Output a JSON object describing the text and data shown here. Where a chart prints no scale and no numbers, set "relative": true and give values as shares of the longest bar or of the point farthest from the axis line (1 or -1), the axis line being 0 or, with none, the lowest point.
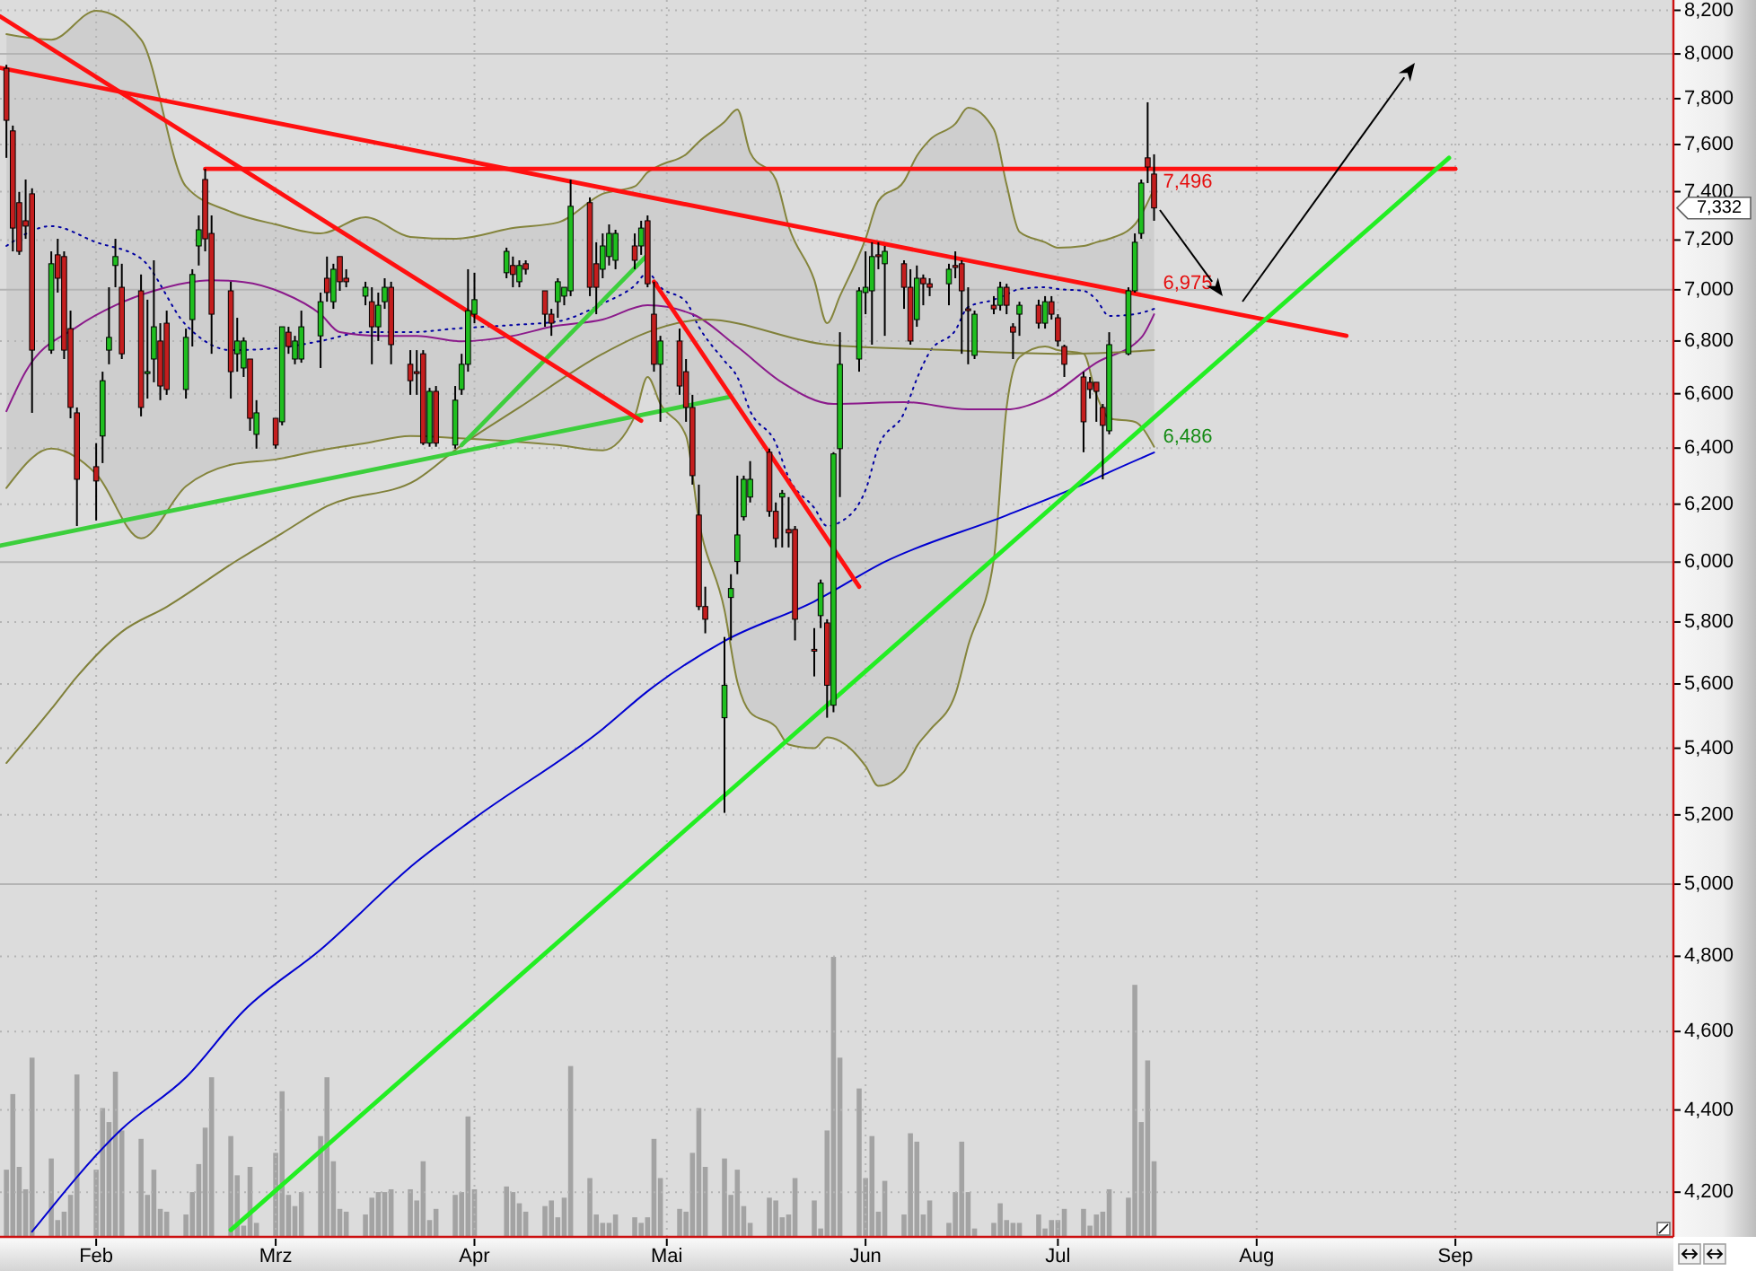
{
  "chart_data": [
    {
      "type": "candlestick",
      "log": true,
      "grid": true,
      "xlim": [
        "--01-17",
        "--10-05"
      ],
      "xticks": [
        {
          "value": "--02-01",
          "label": "Feb"
        },
        {
          "value": "--03-01",
          "label": "Mrz"
        },
        {
          "value": "--04-01",
          "label": "Apr"
        },
        {
          "value": "--05-01",
          "label": "Mai"
        },
        {
          "value": "--06-01",
          "label": "Jun"
        },
        {
          "value": "--07-01",
          "label": "Jul"
        },
        {
          "value": "--08-01",
          "label": "Aug"
        },
        {
          "value": "--09-01",
          "label": "Sep"
        }
      ],
      "ylim": [
        4095,
        8248
      ],
      "yticks": [
        {
          "value": 8200,
          "label": "8,200"
        },
        {
          "value": 8000,
          "label": "8,000"
        },
        {
          "value": 7800,
          "label": "7,800"
        },
        {
          "value": 7600,
          "label": "7,600"
        },
        {
          "value": 7400,
          "label": "7,400"
        },
        {
          "value": 7200,
          "label": "7,200"
        },
        {
          "value": 7000,
          "label": "7,000"
        },
        {
          "value": 6800,
          "label": "6,800"
        },
        {
          "value": 6600,
          "label": "6,600"
        },
        {
          "value": 6400,
          "label": "6,400"
        },
        {
          "value": 6200,
          "label": "6,200"
        },
        {
          "value": 6000,
          "label": "6,000"
        },
        {
          "value": 5800,
          "label": "5,800"
        },
        {
          "value": 5600,
          "label": "5,600"
        },
        {
          "value": 5400,
          "label": "5,400"
        },
        {
          "value": 5200,
          "label": "5,200"
        },
        {
          "value": 5000,
          "label": "5,000"
        },
        {
          "value": 4800,
          "label": "4,800"
        },
        {
          "value": 4600,
          "label": "4,600"
        },
        {
          "value": 4400,
          "label": "4,400"
        },
        {
          "value": 4200,
          "label": "4,200"
        }
      ],
      "x": [
        "--01-18",
        "--01-19",
        "--01-20",
        "--01-21",
        "--01-22",
        "--01-25",
        "--01-26",
        "--01-27",
        "--01-28",
        "--01-29",
        "--02-01",
        "--02-02",
        "--02-03",
        "--02-04",
        "--02-05",
        "--02-08",
        "--02-09",
        "--02-10",
        "--02-11",
        "--02-12",
        "--02-15",
        "--02-16",
        "--02-17",
        "--02-18",
        "--02-19",
        "--02-22",
        "--02-23",
        "--02-24",
        "--02-25",
        "--02-26",
        "--03-01",
        "--03-02",
        "--03-03",
        "--03-04",
        "--03-05",
        "--03-08",
        "--03-09",
        "--03-10",
        "--03-11",
        "--03-12",
        "--03-15",
        "--03-16",
        "--03-17",
        "--03-18",
        "--03-19",
        "--03-22",
        "--03-23",
        "--03-24",
        "--03-25",
        "--03-26",
        "--03-29",
        "--03-30",
        "--03-31",
        "--04-01",
        "--04-06",
        "--04-07",
        "--04-08",
        "--04-09",
        "--04-12",
        "--04-13",
        "--04-14",
        "--04-15",
        "--04-16",
        "--04-19",
        "--04-20",
        "--04-21",
        "--04-22",
        "--04-23",
        "--04-26",
        "--04-27",
        "--04-28",
        "--04-29",
        "--04-30",
        "--05-03",
        "--05-04",
        "--05-05",
        "--05-06",
        "--05-07",
        "--05-10",
        "--05-11",
        "--05-12",
        "--05-13",
        "--05-14",
        "--05-17",
        "--05-18",
        "--05-19",
        "--05-20",
        "--05-21",
        "--05-24",
        "--05-25",
        "--05-26",
        "--05-27",
        "--05-28",
        "--05-31",
        "--06-01",
        "--06-02",
        "--06-03",
        "--06-04",
        "--06-07",
        "--06-08",
        "--06-09",
        "--06-10",
        "--06-11",
        "--06-14",
        "--06-15",
        "--06-16",
        "--06-17",
        "--06-18",
        "--06-21",
        "--06-22",
        "--06-23",
        "--06-24",
        "--06-25",
        "--06-28",
        "--06-29",
        "--06-30",
        "--07-01",
        "--07-02",
        "--07-05",
        "--07-06",
        "--07-07",
        "--07-08",
        "--07-09",
        "--07-12",
        "--07-13",
        "--07-14",
        "--07-15",
        "--07-16"
      ],
      "ohlc": [
        [
          7935,
          7951,
          7543,
          7705
        ],
        [
          7659,
          7682,
          7154,
          7249
        ],
        [
          7354,
          7399,
          7140,
          7154
        ],
        [
          7279,
          7451,
          7205,
          7257
        ],
        [
          7391,
          7414,
          6529,
          6765
        ],
        [
          6765,
          7154,
          6751,
          7104
        ],
        [
          7140,
          7205,
          6989,
          7046
        ],
        [
          7133,
          7154,
          6731,
          6765
        ],
        [
          6848,
          6918,
          6509,
          6549
        ],
        [
          6529,
          6549,
          6124,
          6288
        ],
        [
          6333,
          6418,
          6143,
          6282
        ],
        [
          6444,
          6683,
          6346,
          6649
        ],
        [
          6765,
          7010,
          6711,
          6814
        ],
        [
          7097,
          7205,
          7010,
          7133
        ],
        [
          7010,
          7104,
          6731,
          6751
        ],
        [
          6996,
          7061,
          6516,
          6549
        ],
        [
          6676,
          6961,
          6582,
          6683
        ],
        [
          6731,
          7118,
          6643,
          6855
        ],
        [
          6800,
          6869,
          6576,
          6629
        ],
        [
          6869,
          6918,
          6596,
          6616
        ],
        [
          6616,
          6848,
          6582,
          6814
        ],
        [
          6883,
          7082,
          6779,
          7061
        ],
        [
          7176,
          7301,
          7097,
          7242
        ],
        [
          7451,
          7496,
          7154,
          7205
        ],
        [
          7227,
          7301,
          6751,
          6904
        ],
        [
          6996,
          7032,
          6582,
          6683
        ],
        [
          6751,
          6890,
          6683,
          6800
        ],
        [
          6697,
          6814,
          6663,
          6800
        ],
        [
          6731,
          6731,
          6463,
          6509
        ],
        [
          6450,
          6576,
          6398,
          6529
        ],
        [
          6509,
          6509,
          6398,
          6411
        ],
        [
          6496,
          6855,
          6483,
          6855
        ],
        [
          6834,
          6855,
          6751,
          6779
        ],
        [
          6731,
          6820,
          6711,
          6800
        ],
        [
          6731,
          6918,
          6717,
          6855
        ],
        [
          6820,
          6989,
          6697,
          6953
        ],
        [
          7046,
          7133,
          6953,
          6989
        ],
        [
          6953,
          7104,
          6925,
          7082
        ],
        [
          7133,
          7133,
          6996,
          7032
        ],
        [
          7046,
          7082,
          7010,
          7032
        ],
        [
          6975,
          7032,
          6939,
          7010
        ],
        [
          6953,
          7010,
          6711,
          6855
        ],
        [
          6855,
          6989,
          6800,
          6939
        ],
        [
          6953,
          7046,
          6925,
          7010
        ],
        [
          7010,
          7032,
          6711,
          6786
        ],
        [
          6711,
          6765,
          6596,
          6649
        ],
        [
          6683,
          6765,
          6596,
          6676
        ],
        [
          6751,
          6765,
          6411,
          6418
        ],
        [
          6418,
          6622,
          6405,
          6609
        ],
        [
          6609,
          6629,
          6405,
          6418
        ],
        [
          6411,
          6629,
          6398,
          6576
        ],
        [
          6616,
          6751,
          6596,
          6711
        ],
        [
          6711,
          7082,
          6683,
          6918
        ],
        [
          6904,
          7068,
          6869,
          6961
        ],
        [
          7068,
          7169,
          7046,
          7154
        ],
        [
          7097,
          7133,
          7010,
          7061
        ],
        [
          7032,
          7118,
          7010,
          7097
        ],
        [
          7104,
          7118,
          7061,
          7082
        ],
        [
          6996,
          6996,
          6855,
          6904
        ],
        [
          6904,
          6925,
          6820,
          6869
        ],
        [
          6953,
          7046,
          6890,
          7032
        ],
        [
          6975,
          7010,
          6939,
          7010
        ],
        [
          6996,
          7451,
          6975,
          7339
        ],
        [
          7354,
          7376,
          6975,
          7010
        ],
        [
          7104,
          7191,
          6904,
          7010
        ],
        [
          7082,
          7227,
          7046,
          7176
        ],
        [
          7133,
          7264,
          7097,
          7227
        ],
        [
          7118,
          7242,
          7082,
          7227
        ],
        [
          7176,
          7227,
          7082,
          7118
        ],
        [
          7176,
          7279,
          7140,
          7249
        ],
        [
          7279,
          7301,
          7010,
          7024
        ],
        [
          6904,
          7032,
          6683,
          6711
        ],
        [
          6711,
          6820,
          6496,
          6800
        ],
        [
          6800,
          6848,
          6596,
          6629
        ],
        [
          6683,
          6731,
          6496,
          6549
        ],
        [
          6549,
          6596,
          6269,
          6301
        ],
        [
          6162,
          6269,
          5839,
          5851
        ],
        [
          5851,
          5917,
          5763,
          5809
        ],
        [
          5494,
          5751,
          5206,
          5596
        ],
        [
          5881,
          5959,
          5740,
          5911
        ],
        [
          6002,
          6301,
          5959,
          6093
        ],
        [
          6156,
          6301,
          6143,
          6288
        ],
        [
          6225,
          6353,
          6206,
          6288
        ],
        [
          6385,
          6398,
          6156,
          6175
        ],
        [
          6175,
          6206,
          6050,
          6081
        ],
        [
          6225,
          6250,
          6050,
          6238
        ],
        [
          6112,
          6225,
          6050,
          6100
        ],
        [
          6112,
          6124,
          5740,
          5809
        ],
        [
          5711,
          5780,
          5624,
          5705
        ],
        [
          5821,
          5941,
          5780,
          5929
        ],
        [
          5797,
          5809,
          5494,
          5596
        ],
        [
          5533,
          6385,
          5511,
          6379
        ],
        [
          6398,
          6834,
          6225,
          6711
        ],
        [
          6731,
          7010,
          6683,
          6996
        ],
        [
          6989,
          7154,
          6904,
          7010
        ],
        [
          6996,
          7191,
          6786,
          7133
        ],
        [
          7140,
          7191,
          7082,
          7133
        ],
        [
          7104,
          7176,
          6820,
          7154
        ],
        [
          7104,
          7118,
          6925,
          7010
        ],
        [
          7010,
          7082,
          6786,
          6800
        ],
        [
          6883,
          7097,
          6855,
          7046
        ],
        [
          7046,
          7061,
          6939,
          7024
        ],
        [
          7024,
          7046,
          6975,
          7010
        ],
        [
          7024,
          7104,
          6939,
          7082
        ],
        [
          7097,
          7154,
          7046,
          7089
        ],
        [
          7104,
          7118,
          6751,
          6996
        ],
        [
          6925,
          7010,
          6711,
          6918
        ],
        [
          6745,
          6918,
          6731,
          6904
        ],
        [
          6939,
          6975,
          6904,
          6925
        ],
        [
          6939,
          7032,
          6918,
          7010
        ],
        [
          7010,
          7024,
          6904,
          6939
        ],
        [
          6855,
          6869,
          6731,
          6834
        ],
        [
          6904,
          6953,
          6820,
          6939
        ],
        [
          6939,
          6961,
          6848,
          6869
        ],
        [
          6869,
          6975,
          6848,
          6953
        ],
        [
          6953,
          6975,
          6883,
          6904
        ],
        [
          6890,
          6904,
          6779,
          6800
        ],
        [
          6779,
          6786,
          6663,
          6711
        ],
        [
          6663,
          6683,
          6385,
          6496
        ],
        [
          6643,
          6663,
          6582,
          6616
        ],
        [
          6643,
          6643,
          6496,
          6609
        ],
        [
          6549,
          6562,
          6288,
          6483
        ],
        [
          6463,
          6834,
          6450,
          6786
        ],
        [
          6751,
          7010,
          6745,
          6996
        ],
        [
          6996,
          7227,
          6989,
          7191
        ],
        [
          7227,
          7451,
          7205,
          7436
        ],
        [
          7543,
          7784,
          7436,
          7504
        ],
        [
          7474,
          7558,
          7279,
          7332
        ]
      ],
      "series": [
        {
          "type": "line",
          "color": "#0000a0",
          "line_style": "dotted",
          "x": [
            "--01-18",
            "--01-25",
            "--02-01",
            "--02-08",
            "--02-15",
            "--02-22",
            "--03-01",
            "--03-08",
            "--03-15",
            "--03-22",
            "--03-29",
            "--04-07",
            "--04-14",
            "--04-21",
            "--04-26",
            "--04-28",
            "--04-30",
            "--05-04",
            "--05-06",
            "--05-10",
            "--05-12",
            "--05-14",
            "--05-18",
            "--05-20",
            "--05-24",
            "--05-26",
            "--05-28",
            "--06-01",
            "--06-03",
            "--06-07",
            "--06-09",
            "--06-11",
            "--06-15",
            "--06-17",
            "--06-21",
            "--06-23",
            "--06-25",
            "--06-29",
            "--07-01",
            "--07-05",
            "--07-07",
            "--07-09",
            "--07-13",
            "--07-16"
          ],
          "values": [
            7176,
            7257,
            7191,
            7125,
            6862,
            6765,
            6772,
            6800,
            6834,
            6834,
            6848,
            6862,
            6876,
            6946,
            7017,
            7068,
            7010,
            6953,
            6855,
            6724,
            6663,
            6536,
            6418,
            6295,
            6187,
            6124,
            6137,
            6250,
            6405,
            6529,
            6656,
            6758,
            6841,
            6932,
            6961,
            6982,
            7003,
            7010,
            7003,
            6996,
            6961,
            6897,
            6904,
            6925
          ],
          "upper": [
            8090,
            8065,
            8198,
            8065,
            7422,
            7316,
            7264,
            7227,
            7294,
            7213,
            7205,
            7249,
            7272,
            7391,
            7422,
            7481,
            7512,
            7558,
            7612,
            7698,
            7752,
            7566,
            7451,
            7257,
            7039,
            6869,
            6975,
            7205,
            7361,
            7444,
            7551,
            7620,
            7690,
            7760,
            7666,
            7429,
            7234,
            7191,
            7169,
            7176,
            7191,
            7205,
            7264,
            7414
          ],
          "lower": [
            6257,
            6398,
            6307,
            6081,
            6263,
            6340,
            6359,
            6392,
            6418,
            6444,
            6437,
            6424,
            6411,
            6392,
            6516,
            6663,
            6562,
            6444,
            6143,
            5839,
            5607,
            5511,
            5466,
            5411,
            5400,
            5433,
            5422,
            5346,
            5286,
            5329,
            5406,
            5455,
            5567,
            5722,
            6008,
            6549,
            6738,
            6779,
            6765,
            6751,
            6596,
            6509,
            6496,
            6405
          ]
        },
        {
          "type": "line",
          "color": "#84843c",
          "x": [
            "--01-18",
            "--01-25",
            "--02-01",
            "--02-08",
            "--02-15",
            "--02-22",
            "--03-01",
            "--03-08",
            "--03-15",
            "--03-22",
            "--03-29",
            "--04-07",
            "--04-14",
            "--04-21",
            "--04-26",
            "--04-28",
            "--04-30",
            "--05-04",
            "--05-06",
            "--05-10",
            "--05-12",
            "--05-14",
            "--05-18",
            "--05-20",
            "--05-24",
            "--05-26",
            "--05-28",
            "--06-01",
            "--06-03",
            "--06-07",
            "--06-09",
            "--06-11",
            "--06-15",
            "--06-17",
            "--06-21",
            "--06-23",
            "--06-25",
            "--06-29",
            "--07-01",
            "--07-05",
            "--07-07",
            "--07-09",
            "--07-13",
            "--07-16"
          ],
          "values": [
            8090,
            8065,
            8198,
            8065,
            7422,
            7316,
            7264,
            7227,
            7294,
            7213,
            7205,
            7249,
            7272,
            7391,
            7422,
            7481,
            7512,
            7558,
            7612,
            7698,
            7752,
            7566,
            7451,
            7257,
            7039,
            6869,
            6975,
            7205,
            7361,
            7444,
            7551,
            7620,
            7690,
            7760,
            7666,
            7429,
            7234,
            7191,
            7169,
            7176,
            7191,
            7205,
            7264,
            7414
          ]
        },
        {
          "type": "line",
          "color": "#84843c",
          "x": [
            "--01-18",
            "--01-25",
            "--02-01",
            "--02-08",
            "--02-15",
            "--02-22",
            "--03-01",
            "--03-08",
            "--03-15",
            "--03-22",
            "--03-29",
            "--04-07",
            "--04-14",
            "--04-21",
            "--04-26",
            "--04-28",
            "--04-30",
            "--05-04",
            "--05-06",
            "--05-10",
            "--05-12",
            "--05-14",
            "--05-18",
            "--05-20",
            "--05-24",
            "--05-26",
            "--05-28",
            "--06-01",
            "--06-03",
            "--06-07",
            "--06-09",
            "--06-11",
            "--06-15",
            "--06-17",
            "--06-21",
            "--06-23",
            "--06-25",
            "--06-29",
            "--07-01",
            "--07-05",
            "--07-07",
            "--07-09",
            "--07-13",
            "--07-16"
          ],
          "values": [
            6257,
            6398,
            6307,
            6081,
            6263,
            6340,
            6359,
            6392,
            6418,
            6444,
            6437,
            6424,
            6411,
            6392,
            6516,
            6663,
            6562,
            6444,
            6143,
            5839,
            5607,
            5511,
            5466,
            5411,
            5400,
            5433,
            5422,
            5346,
            5286,
            5329,
            5406,
            5455,
            5567,
            5722,
            6008,
            6549,
            6738,
            6779,
            6765,
            6751,
            6596,
            6509,
            6496,
            6405
          ]
        },
        {
          "type": "line",
          "color": "#8b1a8b",
          "x": [
            "--01-18",
            "--01-21",
            "--01-29",
            "--02-04",
            "--02-10",
            "--02-19",
            "--02-24",
            "--03-02",
            "--03-08",
            "--03-11",
            "--03-17",
            "--03-23",
            "--03-30",
            "--04-07",
            "--04-13",
            "--04-21",
            "--04-28",
            "--05-05",
            "--05-12",
            "--05-19",
            "--05-27",
            "--06-07",
            "--06-17",
            "--06-23",
            "--06-29",
            "--07-07",
            "--07-14",
            "--07-16"
          ],
          "values": [
            6535,
            6683,
            6855,
            6939,
            6996,
            7038,
            7031,
            6989,
            6904,
            6834,
            6820,
            6820,
            6799,
            6820,
            6855,
            6883,
            6939,
            6904,
            6778,
            6642,
            6562,
            6569,
            6542,
            6542,
            6582,
            6717,
            6813,
            6904
          ]
        },
        {
          "type": "line",
          "color": "#80803a",
          "x": [
            "--01-18",
            "--01-25",
            "--01-29",
            "--02-05",
            "--02-12",
            "--02-23",
            "--03-02",
            "--03-09",
            "--03-23",
            "--03-30",
            "--04-08",
            "--04-21",
            "--04-28",
            "--05-07",
            "--05-26",
            "--06-14",
            "--07-02",
            "--07-16"
          ],
          "values": [
            5355,
            5521,
            5623,
            5768,
            5850,
            6006,
            6099,
            6193,
            6287,
            6411,
            6549,
            6751,
            6834,
            6883,
            6786,
            6765,
            6751,
            6765
          ]
        },
        {
          "type": "line",
          "color": "#0000d0",
          "x": [
            "--01-22",
            "--02-05",
            "--02-15",
            "--02-24",
            "--03-08",
            "--03-23",
            "--04-01",
            "--04-21",
            "--04-28",
            "--05-10",
            "--05-24",
            "--06-04",
            "--06-23",
            "--07-06",
            "--07-09",
            "--07-16"
          ],
          "values": [
            4107,
            4353,
            4482,
            4654,
            4818,
            5064,
            5190,
            5459,
            5577,
            5738,
            5868,
            6001,
            6161,
            6281,
            6313,
            6384
          ]
        },
        {
          "type": "line",
          "color": "#3ccf3c",
          "x": [
            "--01-17",
            "--05-11"
          ],
          "values": [
            6056,
            6589
          ]
        },
        {
          "type": "line",
          "color": "#3ccf3c",
          "x": [
            "--03-30",
            "--04-28"
          ],
          "values": [
            6411,
            7140
          ]
        },
        {
          "type": "line",
          "color": "#ff1010",
          "x": [
            "--01-17",
            "--08-15"
          ],
          "values": [
            7937,
            6820
          ]
        },
        {
          "type": "line",
          "color": "#ff1010",
          "x": [
            "--01-17",
            "--04-27"
          ],
          "values": [
            8172,
            6500
          ]
        },
        {
          "type": "line",
          "color": "#ff1010",
          "x": [
            "--04-29",
            "--05-31"
          ],
          "values": [
            7032,
            5917
          ]
        },
        {
          "type": "line",
          "color": "#ff1010",
          "x": [
            "--02-18",
            "--09-01"
          ],
          "values": [
            7496,
            7496
          ]
        },
        {
          "type": "line",
          "color": "#22ee22",
          "x": [
            "--02-22",
            "--08-31"
          ],
          "values": [
            4111,
            7543
          ]
        }
      ],
      "annotations": [
        {
          "text": "7,496",
          "x": "--07-16",
          "y": 7496
        },
        {
          "text": "6,975",
          "x": "--07-16",
          "y": 6975
        },
        {
          "text": "6,486",
          "x": "--07-16",
          "y": 6486
        },
        "7,332"
      ]
    },
    {
      "type": "bar",
      "relative": true,
      "color": "#a3a3a3",
      "xlim": [
        "--01-17",
        "--10-05"
      ],
      "x": [
        "--01-18",
        "--01-19",
        "--01-20",
        "--01-21",
        "--01-22",
        "--01-25",
        "--01-26",
        "--01-27",
        "--01-28",
        "--01-29",
        "--02-01",
        "--02-02",
        "--02-03",
        "--02-04",
        "--02-05",
        "--02-08",
        "--02-09",
        "--02-10",
        "--02-11",
        "--02-12",
        "--02-15",
        "--02-16",
        "--02-17",
        "--02-18",
        "--02-19",
        "--02-22",
        "--02-23",
        "--02-24",
        "--02-25",
        "--02-26",
        "--03-01",
        "--03-02",
        "--03-03",
        "--03-04",
        "--03-05",
        "--03-08",
        "--03-09",
        "--03-10",
        "--03-11",
        "--03-12",
        "--03-15",
        "--03-16",
        "--03-17",
        "--03-18",
        "--03-19",
        "--03-22",
        "--03-23",
        "--03-24",
        "--03-25",
        "--03-26",
        "--03-29",
        "--03-30",
        "--03-31",
        "--04-01",
        "--04-06",
        "--04-07",
        "--04-08",
        "--04-09",
        "--04-12",
        "--04-13",
        "--04-14",
        "--04-15",
        "--04-16",
        "--04-19",
        "--04-20",
        "--04-21",
        "--04-22",
        "--04-23",
        "--04-26",
        "--04-27",
        "--04-28",
        "--04-29",
        "--04-30",
        "--05-03",
        "--05-04",
        "--05-05",
        "--05-06",
        "--05-07",
        "--05-10",
        "--05-11",
        "--05-12",
        "--05-13",
        "--05-14",
        "--05-17",
        "--05-18",
        "--05-19",
        "--05-20",
        "--05-21",
        "--05-24",
        "--05-25",
        "--05-26",
        "--05-27",
        "--05-28",
        "--05-31",
        "--06-01",
        "--06-02",
        "--06-03",
        "--06-04",
        "--06-07",
        "--06-08",
        "--06-09",
        "--06-10",
        "--06-11",
        "--06-14",
        "--06-15",
        "--06-16",
        "--06-17",
        "--06-18",
        "--06-21",
        "--06-22",
        "--06-23",
        "--06-24",
        "--06-25",
        "--06-28",
        "--06-29",
        "--06-30",
        "--07-01",
        "--07-02",
        "--07-05",
        "--07-06",
        "--07-07",
        "--07-08",
        "--07-09",
        "--07-12",
        "--07-13",
        "--07-14",
        "--07-15",
        "--07-16"
      ],
      "values": [
        0.24,
        0.51,
        0.25,
        0.17,
        0.64,
        0.28,
        0.06,
        0.09,
        0.15,
        0.58,
        0.24,
        0.46,
        0.41,
        0.59,
        0.38,
        0.35,
        0.15,
        0.24,
        0.1,
        0.09,
        0.08,
        0.16,
        0.26,
        0.39,
        0.57,
        0.36,
        0.22,
        0.04,
        0.25,
        0.05,
        0.3,
        0.52,
        0.15,
        0.11,
        0.16,
        0.36,
        0.57,
        0.27,
        0.1,
        0.09,
        0.08,
        0.14,
        0.16,
        0.16,
        0.17,
        0.17,
        0.13,
        0.27,
        0.06,
        0.1,
        0.15,
        0.16,
        0.43,
        0.17,
        0.18,
        0.16,
        0.12,
        0.09,
        0.11,
        0.13,
        0.07,
        0.14,
        0.61,
        0.21,
        0.08,
        0.05,
        0.05,
        0.08,
        0.07,
        0.05,
        0.07,
        0.35,
        0.21,
        0.1,
        0.09,
        0.3,
        0.46,
        0.25,
        0.28,
        0.15,
        0.24,
        0.11,
        0.05,
        0.14,
        0.13,
        0.07,
        0.08,
        0.21,
        0.13,
        0.03,
        0.38,
        1,
        0.64,
        0.53,
        0.21,
        0.36,
        0.09,
        0.2,
        0.08,
        0.37,
        0.34,
        0.08,
        0.13,
        0.05,
        0.16,
        0.34,
        0.16,
        0.03,
        0.05,
        0.12,
        0.06,
        0.05,
        0.05,
        0.08,
        0.03,
        0.06,
        0.06,
        0.1,
        0.1,
        0.04,
        0.08,
        0.09,
        0.17,
        0.14,
        0.9,
        0.41,
        0.63,
        0.27
      ]
    }
  ]
}
